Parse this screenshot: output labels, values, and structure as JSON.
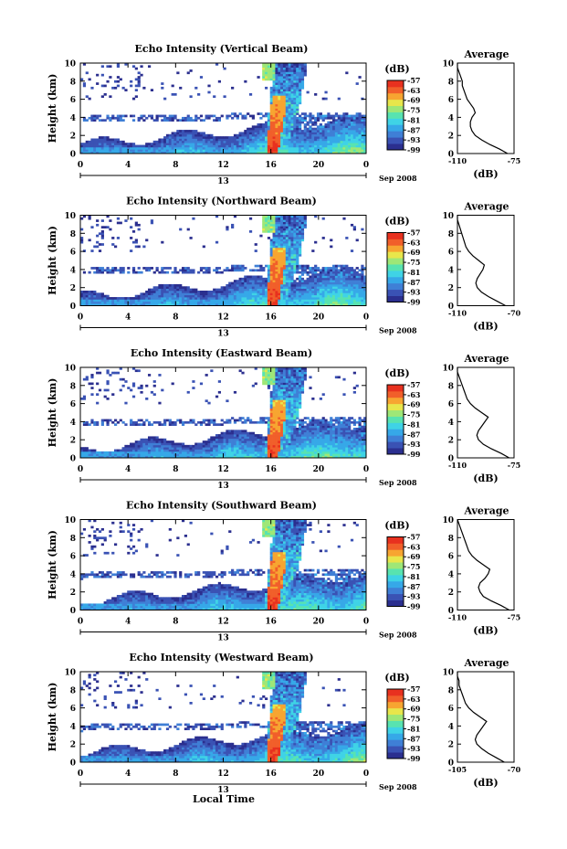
{
  "figure": {
    "footer_label": "Local Time"
  },
  "colors": {
    "scale": [
      "#2b2f8f",
      "#3a52b4",
      "#3f7fd6",
      "#36a8e8",
      "#3fd3e6",
      "#58e3b0",
      "#9ee777",
      "#e8e64b",
      "#f7a531",
      "#f15f2a",
      "#e8311f"
    ],
    "echo_min": "#2b2f8f",
    "echo_max": "#e8311f"
  },
  "chart_data": [
    {
      "type": "heatmap",
      "title": "Echo Intensity (Vertical Beam)",
      "ylabel": "Height (km)",
      "xlabel": "Local Time",
      "x_ticks": [
        "0",
        "4",
        "8",
        "12",
        "16",
        "20",
        "0"
      ],
      "y_ticks": [
        "0",
        "2",
        "4",
        "6",
        "8",
        "10"
      ],
      "xlim": [
        0,
        24
      ],
      "ylim": [
        0,
        10
      ],
      "date_label": "13",
      "month_label": "Sep 2008",
      "colorbar": {
        "unit": "(dB)",
        "ticks": [
          "-57",
          "-63",
          "-69",
          "-75",
          "-81",
          "-87",
          "-93",
          "-99"
        ],
        "range": [
          -99,
          -57
        ]
      },
      "average_profile": {
        "title": "Average",
        "xlabel": "(dB)",
        "x_ticks": [
          "-110",
          "-75"
        ],
        "xlim": [
          -110,
          -75
        ],
        "y_ticks": [
          "0",
          "2",
          "4",
          "6",
          "8",
          "10"
        ],
        "height_km": [
          0,
          0.5,
          1,
          1.5,
          2,
          2.5,
          3,
          3.5,
          4,
          4.5,
          5,
          5.5,
          6,
          6.5,
          7,
          7.5,
          8,
          8.5,
          9,
          9.5,
          10
        ],
        "values_db": [
          -79,
          -84,
          -90,
          -95,
          -99,
          -101,
          -102,
          -102,
          -101,
          -99,
          -100,
          -102,
          -104,
          -105,
          -106,
          -107,
          -107,
          -108,
          -109,
          -110,
          -110
        ]
      }
    },
    {
      "type": "heatmap",
      "title": "Echo Intensity (Northward Beam)",
      "ylabel": "Height (km)",
      "xlabel": "Local Time",
      "x_ticks": [
        "0",
        "4",
        "8",
        "12",
        "16",
        "20",
        "0"
      ],
      "y_ticks": [
        "0",
        "2",
        "4",
        "6",
        "8",
        "10"
      ],
      "xlim": [
        0,
        24
      ],
      "ylim": [
        0,
        10
      ],
      "date_label": "13",
      "month_label": "Sep 2008",
      "colorbar": {
        "unit": "(dB)",
        "ticks": [
          "-57",
          "-63",
          "-69",
          "-75",
          "-81",
          "-87",
          "-93",
          "-99"
        ],
        "range": [
          -99,
          -57
        ]
      },
      "average_profile": {
        "title": "Average",
        "xlabel": "(dB)",
        "x_ticks": [
          "-110",
          "-70"
        ],
        "xlim": [
          -110,
          -70
        ],
        "y_ticks": [
          "0",
          "2",
          "4",
          "6",
          "8",
          "10"
        ],
        "height_km": [
          0,
          0.5,
          1,
          1.5,
          2,
          2.5,
          3,
          3.5,
          4,
          4.5,
          5,
          5.5,
          6,
          6.5,
          7,
          7.5,
          8,
          8.5,
          9,
          9.5,
          10
        ],
        "values_db": [
          -76,
          -82,
          -88,
          -93,
          -96,
          -97,
          -96,
          -94,
          -92,
          -91,
          -95,
          -99,
          -102,
          -104,
          -105,
          -106,
          -107,
          -108,
          -109,
          -110,
          -110
        ]
      }
    },
    {
      "type": "heatmap",
      "title": "Echo Intensity (Eastward Beam)",
      "ylabel": "Height (km)",
      "xlabel": "Local Time",
      "x_ticks": [
        "0",
        "4",
        "8",
        "12",
        "16",
        "20",
        "0"
      ],
      "y_ticks": [
        "0",
        "2",
        "4",
        "6",
        "8",
        "10"
      ],
      "xlim": [
        0,
        24
      ],
      "ylim": [
        0,
        10
      ],
      "date_label": "13",
      "month_label": "Sep 2008",
      "colorbar": {
        "unit": "(dB)",
        "ticks": [
          "-57",
          "-63",
          "-69",
          "-75",
          "-81",
          "-87",
          "-93",
          "-99"
        ],
        "range": [
          -99,
          -57
        ]
      },
      "average_profile": {
        "title": "Average",
        "xlabel": "(dB)",
        "x_ticks": [
          "-110",
          "-75"
        ],
        "xlim": [
          -110,
          -75
        ],
        "y_ticks": [
          "0",
          "2",
          "4",
          "6",
          "8",
          "10"
        ],
        "height_km": [
          0,
          0.5,
          1,
          1.5,
          2,
          2.5,
          3,
          3.5,
          4,
          4.5,
          5,
          5.5,
          6,
          6.5,
          7,
          7.5,
          8,
          8.5,
          9,
          9.5,
          10
        ],
        "values_db": [
          -78,
          -83,
          -89,
          -94,
          -97,
          -98,
          -97,
          -95,
          -93,
          -91,
          -95,
          -99,
          -102,
          -104,
          -105,
          -106,
          -107,
          -108,
          -109,
          -110,
          -110
        ]
      }
    },
    {
      "type": "heatmap",
      "title": "Echo Intensity (Southward Beam)",
      "ylabel": "Height (km)",
      "xlabel": "Local Time",
      "x_ticks": [
        "0",
        "4",
        "8",
        "12",
        "16",
        "20",
        "0"
      ],
      "y_ticks": [
        "0",
        "2",
        "4",
        "6",
        "8",
        "10"
      ],
      "xlim": [
        0,
        24
      ],
      "ylim": [
        0,
        10
      ],
      "date_label": "13",
      "month_label": "Sep 2008",
      "colorbar": {
        "unit": "(dB)",
        "ticks": [
          "-57",
          "-63",
          "-69",
          "-75",
          "-81",
          "-87",
          "-93",
          "-99"
        ],
        "range": [
          -99,
          -57
        ]
      },
      "average_profile": {
        "title": "Average",
        "xlabel": "(dB)",
        "x_ticks": [
          "-110",
          "-75"
        ],
        "xlim": [
          -110,
          -75
        ],
        "y_ticks": [
          "0",
          "2",
          "4",
          "6",
          "8",
          "10"
        ],
        "height_km": [
          0,
          0.5,
          1,
          1.5,
          2,
          2.5,
          3,
          3.5,
          4,
          4.5,
          5,
          5.5,
          6,
          6.5,
          7,
          7.5,
          8,
          8.5,
          9,
          9.5,
          10
        ],
        "values_db": [
          -78,
          -83,
          -89,
          -94,
          -96,
          -97,
          -96,
          -93,
          -91,
          -90,
          -94,
          -98,
          -101,
          -103,
          -104,
          -105,
          -106,
          -107,
          -108,
          -109,
          -110
        ]
      }
    },
    {
      "type": "heatmap",
      "title": "Echo Intensity (Westward Beam)",
      "ylabel": "Height (km)",
      "xlabel": "Local Time",
      "x_ticks": [
        "0",
        "4",
        "8",
        "12",
        "16",
        "20",
        "0"
      ],
      "y_ticks": [
        "0",
        "2",
        "4",
        "6",
        "8",
        "10"
      ],
      "xlim": [
        0,
        24
      ],
      "ylim": [
        0,
        10
      ],
      "date_label": "13",
      "month_label": "Sep 2008",
      "colorbar": {
        "unit": "(dB)",
        "ticks": [
          "-57",
          "-63",
          "-69",
          "-75",
          "-81",
          "-87",
          "-93",
          "-99"
        ],
        "range": [
          -99,
          -57
        ]
      },
      "average_profile": {
        "title": "Average",
        "xlabel": "(dB)",
        "x_ticks": [
          "-105",
          "-70"
        ],
        "xlim": [
          -105,
          -70
        ],
        "y_ticks": [
          "0",
          "2",
          "4",
          "6",
          "8",
          "10"
        ],
        "height_km": [
          0,
          0.5,
          1,
          1.5,
          2,
          2.5,
          3,
          3.5,
          4,
          4.5,
          5,
          5.5,
          6,
          6.5,
          7,
          7.5,
          8,
          8.5,
          9,
          9.5,
          10
        ],
        "values_db": [
          -76,
          -81,
          -86,
          -90,
          -93,
          -94,
          -93,
          -91,
          -89,
          -87,
          -91,
          -95,
          -98,
          -100,
          -101,
          -102,
          -103,
          -104,
          -104,
          -105,
          -105
        ]
      }
    }
  ]
}
